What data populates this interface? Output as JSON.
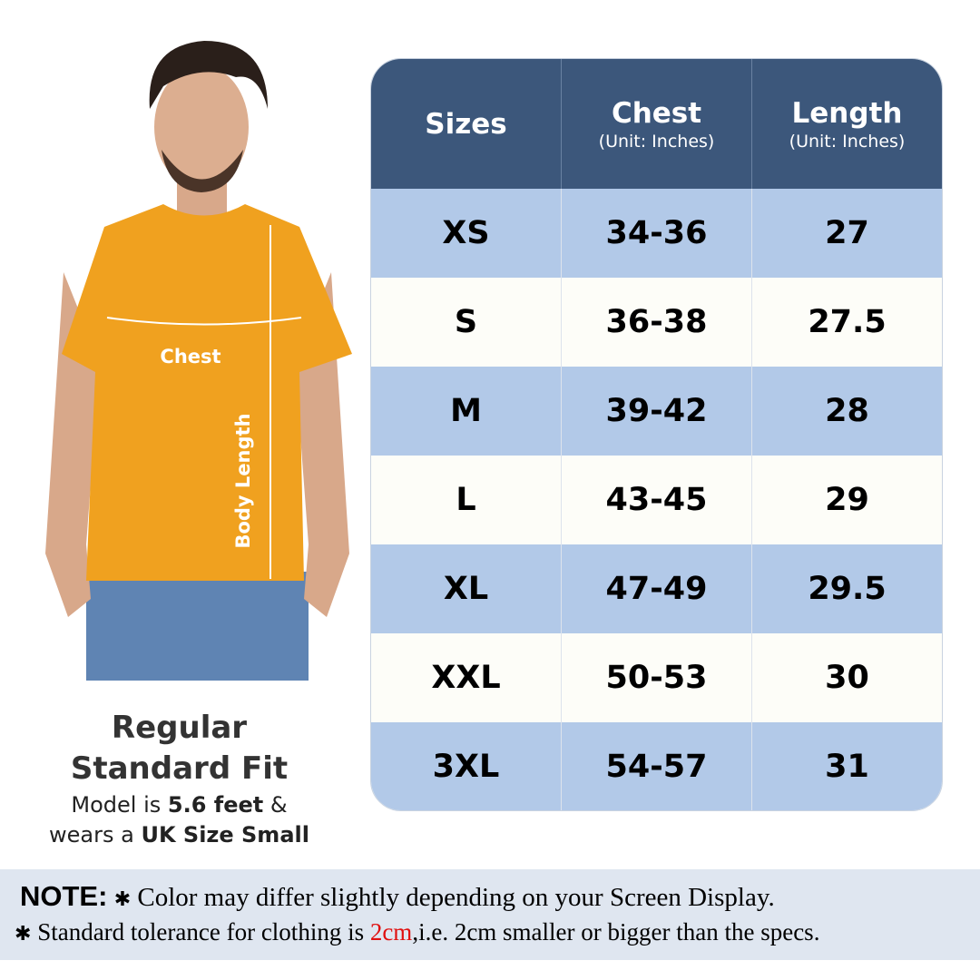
{
  "model": {
    "chest_label": "Chest",
    "length_label": "Body Length"
  },
  "caption": {
    "line1": "Regular",
    "line2": "Standard Fit",
    "line3_pre": "Model is ",
    "line3_bold": "5.6 feet",
    "line3_post": " &",
    "line4_pre": "wears a ",
    "line4_bold": "UK Size Small"
  },
  "table": {
    "headers": [
      {
        "title": "Sizes",
        "sub": ""
      },
      {
        "title": "Chest",
        "sub": "(Unit: Inches)"
      },
      {
        "title": "Length",
        "sub": "(Unit: Inches)"
      }
    ],
    "rows": [
      [
        "XS",
        "34-36",
        "27"
      ],
      [
        "S",
        "36-38",
        "27.5"
      ],
      [
        "M",
        "39-42",
        "28"
      ],
      [
        "L",
        "43-45",
        "29"
      ],
      [
        "XL",
        "47-49",
        "29.5"
      ],
      [
        "XXL",
        "50-53",
        "30"
      ],
      [
        "3XL",
        "54-57",
        "31"
      ]
    ]
  },
  "note": {
    "label": "NOTE:",
    "bullet": "✱",
    "line1": "Color may differ slightly depending on your Screen Display.",
    "line2_pre": "Standard tolerance for clothing is ",
    "line2_red": "2cm",
    "line2_post": ",i.e. 2cm smaller or bigger than the specs."
  },
  "colors": {
    "header": "#3c577b",
    "row_blue": "#b2c9e8",
    "row_white": "#fdfdf8",
    "shirt": "#f0a11f",
    "highlight": "#e01010"
  }
}
